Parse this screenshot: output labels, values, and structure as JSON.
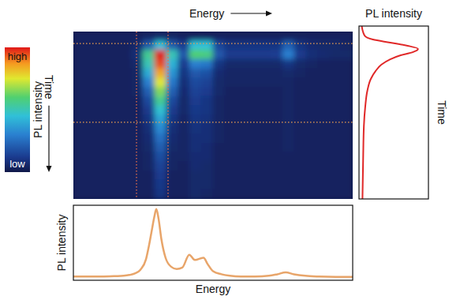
{
  "chart_data": [
    {
      "type": "heatmap",
      "x_label": "Energy",
      "y_label": "Time",
      "xlim": [
        0,
        100
      ],
      "ylim": [
        0,
        100
      ],
      "tick_labels": false,
      "energy_window": [
        22.6,
        33.9
      ],
      "time_window": [
        7.1,
        54.2
      ],
      "colorbar": {
        "label": "PL intensity",
        "range": [
          0,
          100
        ],
        "ticks": [
          {
            "value": 0,
            "label": "low"
          },
          {
            "value": 100,
            "label": "high"
          }
        ]
      },
      "z": [
        [
          4,
          4,
          4,
          4,
          4,
          4,
          5,
          6,
          5,
          4,
          4,
          4,
          4,
          4,
          4,
          4,
          4,
          4,
          4,
          4,
          4,
          4,
          4,
          4
        ],
        [
          4,
          4,
          4,
          4,
          4,
          6,
          20,
          45,
          20,
          12,
          45,
          45,
          15,
          10,
          10,
          10,
          10,
          10,
          22,
          10,
          7,
          6,
          6,
          5
        ],
        [
          4,
          4,
          4,
          4,
          4,
          8,
          55,
          100,
          50,
          20,
          60,
          58,
          20,
          12,
          12,
          12,
          12,
          13,
          30,
          12,
          8,
          7,
          6,
          6
        ],
        [
          4,
          4,
          4,
          4,
          4,
          6,
          50,
          95,
          42,
          12,
          30,
          28,
          10,
          6,
          6,
          6,
          6,
          6,
          10,
          6,
          5,
          4,
          4,
          4
        ],
        [
          4,
          4,
          4,
          4,
          4,
          5,
          40,
          85,
          35,
          10,
          20,
          18,
          7,
          5,
          5,
          5,
          5,
          5,
          6,
          5,
          4,
          4,
          4,
          4
        ],
        [
          4,
          4,
          4,
          4,
          4,
          5,
          30,
          75,
          28,
          8,
          16,
          14,
          6,
          5,
          5,
          5,
          5,
          5,
          5,
          4,
          4,
          4,
          4,
          4
        ],
        [
          4,
          4,
          4,
          4,
          4,
          5,
          22,
          65,
          22,
          7,
          14,
          12,
          6,
          4,
          4,
          4,
          4,
          4,
          5,
          4,
          4,
          4,
          4,
          4
        ],
        [
          4,
          4,
          4,
          4,
          4,
          4,
          16,
          55,
          16,
          6,
          12,
          10,
          5,
          4,
          4,
          4,
          4,
          4,
          5,
          4,
          4,
          4,
          4,
          4
        ],
        [
          4,
          4,
          4,
          4,
          4,
          4,
          12,
          46,
          12,
          6,
          11,
          10,
          5,
          4,
          4,
          4,
          4,
          4,
          5,
          4,
          4,
          4,
          4,
          4
        ],
        [
          4,
          4,
          4,
          4,
          4,
          4,
          10,
          38,
          10,
          5,
          10,
          9,
          5,
          4,
          4,
          4,
          4,
          4,
          5,
          4,
          4,
          4,
          4,
          4
        ],
        [
          4,
          4,
          4,
          4,
          4,
          4,
          8,
          32,
          8,
          5,
          9,
          8,
          5,
          4,
          4,
          4,
          4,
          4,
          5,
          4,
          4,
          4,
          4,
          4
        ],
        [
          4,
          4,
          4,
          4,
          4,
          4,
          7,
          26,
          7,
          5,
          8,
          8,
          5,
          4,
          4,
          4,
          4,
          4,
          5,
          4,
          4,
          4,
          4,
          4
        ],
        [
          4,
          4,
          4,
          4,
          4,
          4,
          6,
          21,
          6,
          5,
          8,
          7,
          4,
          4,
          4,
          4,
          4,
          4,
          5,
          4,
          4,
          4,
          4,
          4
        ],
        [
          4,
          4,
          4,
          4,
          4,
          4,
          5,
          17,
          5,
          5,
          7,
          7,
          4,
          4,
          4,
          4,
          4,
          4,
          4,
          4,
          4,
          4,
          4,
          4
        ],
        [
          4,
          4,
          4,
          4,
          4,
          4,
          5,
          14,
          5,
          4,
          7,
          6,
          4,
          4,
          4,
          4,
          4,
          4,
          4,
          4,
          4,
          4,
          4,
          4
        ],
        [
          4,
          4,
          4,
          4,
          4,
          4,
          4,
          12,
          4,
          4,
          6,
          6,
          4,
          4,
          4,
          4,
          4,
          4,
          4,
          4,
          4,
          4,
          4,
          4
        ],
        [
          4,
          4,
          4,
          4,
          4,
          4,
          4,
          11,
          4,
          4,
          6,
          6,
          4,
          4,
          4,
          4,
          4,
          4,
          4,
          4,
          4,
          4,
          4,
          4
        ],
        [
          4,
          4,
          4,
          4,
          4,
          4,
          4,
          10,
          4,
          4,
          6,
          5,
          4,
          4,
          4,
          4,
          4,
          4,
          4,
          4,
          4,
          4,
          4,
          4
        ]
      ]
    },
    {
      "type": "line",
      "x_label": "Energy",
      "y_label": "PL intensity",
      "xlim": [
        0,
        100
      ],
      "ylim": [
        0,
        100
      ],
      "tick_labels": false,
      "color": "#e8a56a",
      "x": [
        0,
        5,
        10,
        15,
        18,
        20,
        22,
        24,
        26,
        27,
        28,
        29,
        29.7,
        30.5,
        31.5,
        33,
        35,
        37,
        39,
        41.5,
        43.5,
        46.6,
        48,
        50,
        53,
        56,
        60,
        65,
        70,
        73,
        76,
        79,
        83,
        88,
        94,
        100
      ],
      "values": [
        5,
        5,
        5,
        5.5,
        6,
        7,
        9,
        14,
        28,
        45,
        65,
        85,
        95,
        82,
        55,
        30,
        18,
        15,
        17,
        34,
        27,
        30,
        22,
        12,
        8,
        6,
        5,
        5,
        6,
        8,
        10.5,
        8,
        6,
        5,
        4.5,
        4.5
      ]
    },
    {
      "type": "line",
      "orientation": "horizontal",
      "x_label": "PL intensity",
      "y_label": "Time",
      "xlim": [
        0,
        100
      ],
      "ylim": [
        0,
        100
      ],
      "tick_labels": false,
      "color": "#e02828",
      "x": [
        0,
        5.5,
        7.8,
        9.6,
        11.4,
        13.2,
        15,
        16.9,
        19.2,
        22.4,
        26,
        30.6,
        37.4,
        46.6,
        58,
        76,
        100
      ],
      "values": [
        4,
        8,
        20,
        45,
        70,
        85,
        78,
        60,
        45,
        32,
        24,
        17,
        12,
        9,
        7,
        6,
        5
      ]
    }
  ]
}
